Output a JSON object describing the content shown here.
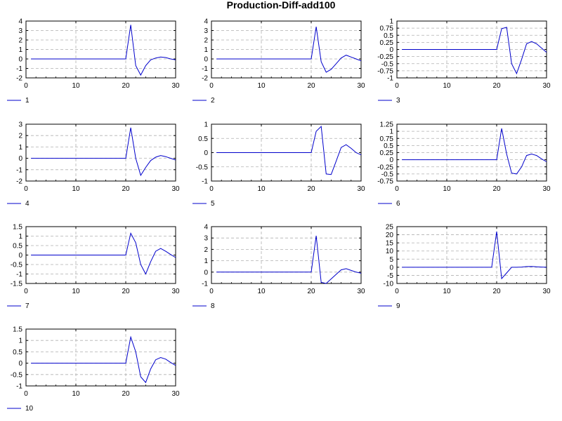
{
  "title": "Production-Diff-add100",
  "chart_data": [
    {
      "type": "line",
      "title": "",
      "xlabel": "",
      "ylabel": "",
      "grid": true,
      "legend_placement": "bottom-left",
      "xlim": [
        0,
        30
      ],
      "ylim": [
        -2,
        4
      ],
      "xticks": [
        "0",
        "10",
        "20",
        "30"
      ],
      "yticks": [
        "-2",
        "-1",
        "0",
        "1",
        "2",
        "3",
        "4"
      ],
      "series": [
        {
          "name": "1",
          "color": "#0000cc",
          "x": [
            1,
            2,
            3,
            4,
            5,
            6,
            7,
            8,
            9,
            10,
            11,
            12,
            13,
            14,
            15,
            16,
            17,
            18,
            19,
            20,
            21,
            22,
            23,
            24,
            25,
            26,
            27,
            28,
            29,
            30
          ],
          "y": [
            0,
            0,
            0,
            0,
            0,
            0,
            0,
            0,
            0,
            0,
            0,
            0,
            0,
            0,
            0,
            0,
            0,
            0,
            0,
            0,
            3.6,
            -0.7,
            -1.7,
            -0.7,
            -0.1,
            0.1,
            0.2,
            0.15,
            0,
            -0.1
          ]
        }
      ]
    },
    {
      "type": "line",
      "title": "",
      "xlabel": "",
      "ylabel": "",
      "grid": true,
      "legend_placement": "bottom-left",
      "xlim": [
        0,
        30
      ],
      "ylim": [
        -2,
        4
      ],
      "xticks": [
        "0",
        "10",
        "20",
        "30"
      ],
      "yticks": [
        "-2",
        "-1",
        "0",
        "1",
        "2",
        "3",
        "4"
      ],
      "series": [
        {
          "name": "2",
          "color": "#0000cc",
          "x": [
            1,
            2,
            3,
            4,
            5,
            6,
            7,
            8,
            9,
            10,
            11,
            12,
            13,
            14,
            15,
            16,
            17,
            18,
            19,
            20,
            21,
            22,
            23,
            24,
            25,
            26,
            27,
            28,
            29,
            30
          ],
          "y": [
            0,
            0,
            0,
            0,
            0,
            0,
            0,
            0,
            0,
            0,
            0,
            0,
            0,
            0,
            0,
            0,
            0,
            0,
            0,
            0,
            3.4,
            -0.3,
            -1.4,
            -1.1,
            -0.5,
            0.1,
            0.4,
            0.2,
            0,
            -0.2
          ]
        }
      ]
    },
    {
      "type": "line",
      "title": "",
      "xlabel": "",
      "ylabel": "",
      "grid": true,
      "legend_placement": "bottom-left",
      "xlim": [
        0,
        30
      ],
      "ylim": [
        -1,
        1
      ],
      "xticks": [
        "0",
        "10",
        "20",
        "30"
      ],
      "yticks": [
        "-1",
        "-0.75",
        "-0.5",
        "-0.25",
        "0",
        "0.25",
        "0.5",
        "0.75",
        "1"
      ],
      "series": [
        {
          "name": "3",
          "color": "#0000cc",
          "x": [
            1,
            2,
            3,
            4,
            5,
            6,
            7,
            8,
            9,
            10,
            11,
            12,
            13,
            14,
            15,
            16,
            17,
            18,
            19,
            20,
            21,
            22,
            23,
            24,
            25,
            26,
            27,
            28,
            29,
            30
          ],
          "y": [
            0,
            0,
            0,
            0,
            0,
            0,
            0,
            0,
            0,
            0,
            0,
            0,
            0,
            0,
            0,
            0,
            0,
            0,
            0,
            0,
            0.73,
            0.78,
            -0.5,
            -0.85,
            -0.35,
            0.2,
            0.28,
            0.2,
            0.05,
            -0.1
          ]
        }
      ]
    },
    {
      "type": "line",
      "title": "",
      "xlabel": "",
      "ylabel": "",
      "grid": true,
      "legend_placement": "bottom-left",
      "xlim": [
        0,
        30
      ],
      "ylim": [
        -2,
        3
      ],
      "xticks": [
        "0",
        "10",
        "20",
        "30"
      ],
      "yticks": [
        "-2",
        "-1",
        "0",
        "1",
        "2",
        "3"
      ],
      "series": [
        {
          "name": "4",
          "color": "#0000cc",
          "x": [
            1,
            2,
            3,
            4,
            5,
            6,
            7,
            8,
            9,
            10,
            11,
            12,
            13,
            14,
            15,
            16,
            17,
            18,
            19,
            20,
            21,
            22,
            23,
            24,
            25,
            26,
            27,
            28,
            29,
            30
          ],
          "y": [
            0,
            0,
            0,
            0,
            0,
            0,
            0,
            0,
            0,
            0,
            0,
            0,
            0,
            0,
            0,
            0,
            0,
            0,
            0,
            0,
            2.7,
            0,
            -1.5,
            -0.8,
            -0.2,
            0.1,
            0.25,
            0.15,
            0,
            -0.15
          ]
        }
      ]
    },
    {
      "type": "line",
      "title": "",
      "xlabel": "",
      "ylabel": "",
      "grid": true,
      "legend_placement": "bottom-left",
      "xlim": [
        0,
        30
      ],
      "ylim": [
        -1,
        1
      ],
      "xticks": [
        "0",
        "10",
        "20",
        "30"
      ],
      "yticks": [
        "-1",
        "-0.5",
        "0",
        "0.5",
        "1"
      ],
      "series": [
        {
          "name": "5",
          "color": "#0000cc",
          "x": [
            1,
            2,
            3,
            4,
            5,
            6,
            7,
            8,
            9,
            10,
            11,
            12,
            13,
            14,
            15,
            16,
            17,
            18,
            19,
            20,
            21,
            22,
            23,
            24,
            25,
            26,
            27,
            28,
            29,
            30
          ],
          "y": [
            0,
            0,
            0,
            0,
            0,
            0,
            0,
            0,
            0,
            0,
            0,
            0,
            0,
            0,
            0,
            0,
            0,
            0,
            0,
            0,
            0.75,
            0.92,
            -0.75,
            -0.77,
            -0.3,
            0.18,
            0.28,
            0.15,
            0,
            -0.08
          ]
        }
      ]
    },
    {
      "type": "line",
      "title": "",
      "xlabel": "",
      "ylabel": "",
      "grid": true,
      "legend_placement": "bottom-left",
      "xlim": [
        0,
        30
      ],
      "ylim": [
        -0.75,
        1.25
      ],
      "xticks": [
        "0",
        "10",
        "20",
        "30"
      ],
      "yticks": [
        "-0.75",
        "-0.5",
        "-0.25",
        "0",
        "0.25",
        "0.5",
        "0.75",
        "1",
        "1.25"
      ],
      "series": [
        {
          "name": "6",
          "color": "#0000cc",
          "x": [
            1,
            2,
            3,
            4,
            5,
            6,
            7,
            8,
            9,
            10,
            11,
            12,
            13,
            14,
            15,
            16,
            17,
            18,
            19,
            20,
            21,
            22,
            23,
            24,
            25,
            26,
            27,
            28,
            29,
            30
          ],
          "y": [
            0,
            0,
            0,
            0,
            0,
            0,
            0,
            0,
            0,
            0,
            0,
            0,
            0,
            0,
            0,
            0,
            0,
            0,
            0,
            0,
            1.1,
            0.2,
            -0.47,
            -0.5,
            -0.25,
            0.15,
            0.2,
            0.15,
            0.03,
            -0.07
          ]
        }
      ]
    },
    {
      "type": "line",
      "title": "",
      "xlabel": "",
      "ylabel": "",
      "grid": true,
      "legend_placement": "bottom-left",
      "xlim": [
        0,
        30
      ],
      "ylim": [
        -1.5,
        1.5
      ],
      "xticks": [
        "0",
        "10",
        "20",
        "30"
      ],
      "yticks": [
        "-1.5",
        "-1",
        "-0.5",
        "0",
        "0.5",
        "1",
        "1.5"
      ],
      "series": [
        {
          "name": "7",
          "color": "#0000cc",
          "x": [
            1,
            2,
            3,
            4,
            5,
            6,
            7,
            8,
            9,
            10,
            11,
            12,
            13,
            14,
            15,
            16,
            17,
            18,
            19,
            20,
            21,
            22,
            23,
            24,
            25,
            26,
            27,
            28,
            29,
            30
          ],
          "y": [
            0,
            0,
            0,
            0,
            0,
            0,
            0,
            0,
            0,
            0,
            0,
            0,
            0,
            0,
            0,
            0,
            0,
            0,
            0,
            0,
            1.15,
            0.65,
            -0.5,
            -1.0,
            -0.35,
            0.2,
            0.35,
            0.2,
            0.03,
            -0.13
          ]
        }
      ]
    },
    {
      "type": "line",
      "title": "",
      "xlabel": "",
      "ylabel": "",
      "grid": true,
      "legend_placement": "bottom-left",
      "xlim": [
        0,
        30
      ],
      "ylim": [
        -1,
        4
      ],
      "xticks": [
        "0",
        "10",
        "20",
        "30"
      ],
      "yticks": [
        "-1",
        "0",
        "1",
        "2",
        "3",
        "4"
      ],
      "series": [
        {
          "name": "8",
          "color": "#0000cc",
          "x": [
            1,
            2,
            3,
            4,
            5,
            6,
            7,
            8,
            9,
            10,
            11,
            12,
            13,
            14,
            15,
            16,
            17,
            18,
            19,
            20,
            21,
            22,
            23,
            24,
            25,
            26,
            27,
            28,
            29,
            30
          ],
          "y": [
            0,
            0,
            0,
            0,
            0,
            0,
            0,
            0,
            0,
            0,
            0,
            0,
            0,
            0,
            0,
            0,
            0,
            0,
            0,
            0,
            3.2,
            -0.9,
            -1.0,
            -0.6,
            -0.2,
            0.2,
            0.3,
            0.15,
            0,
            -0.1
          ]
        }
      ]
    },
    {
      "type": "line",
      "title": "",
      "xlabel": "",
      "ylabel": "",
      "grid": true,
      "legend_placement": "bottom-left",
      "xlim": [
        0,
        30
      ],
      "ylim": [
        -10,
        25
      ],
      "xticks": [
        "0",
        "10",
        "20",
        "30"
      ],
      "yticks": [
        "-10",
        "-5",
        "0",
        "5",
        "10",
        "15",
        "20",
        "25"
      ],
      "series": [
        {
          "name": "9",
          "color": "#0000cc",
          "x": [
            1,
            2,
            3,
            4,
            5,
            6,
            7,
            8,
            9,
            10,
            11,
            12,
            13,
            14,
            15,
            16,
            17,
            18,
            19,
            20,
            21,
            22,
            23,
            24,
            25,
            26,
            27,
            28,
            29,
            30
          ],
          "y": [
            0,
            0,
            0,
            0,
            0,
            0,
            0,
            0,
            0,
            0,
            0,
            0,
            0,
            0,
            0,
            0,
            0,
            0,
            0,
            22,
            -7,
            -3.5,
            0,
            0,
            0.1,
            0.4,
            0.5,
            0.3,
            0.1,
            0
          ]
        }
      ]
    },
    {
      "type": "line",
      "title": "",
      "xlabel": "",
      "ylabel": "",
      "grid": true,
      "legend_placement": "bottom-left",
      "xlim": [
        0,
        30
      ],
      "ylim": [
        -1,
        1.5
      ],
      "xticks": [
        "0",
        "10",
        "20",
        "30"
      ],
      "yticks": [
        "-1",
        "-0.5",
        "0",
        "0.5",
        "1",
        "1.5"
      ],
      "series": [
        {
          "name": "10",
          "color": "#0000cc",
          "x": [
            1,
            2,
            3,
            4,
            5,
            6,
            7,
            8,
            9,
            10,
            11,
            12,
            13,
            14,
            15,
            16,
            17,
            18,
            19,
            20,
            21,
            22,
            23,
            24,
            25,
            26,
            27,
            28,
            29,
            30
          ],
          "y": [
            0,
            0,
            0,
            0,
            0,
            0,
            0,
            0,
            0,
            0,
            0,
            0,
            0,
            0,
            0,
            0,
            0,
            0,
            0,
            0,
            1.15,
            0.5,
            -0.6,
            -0.85,
            -0.25,
            0.15,
            0.25,
            0.18,
            0.03,
            -0.1
          ]
        }
      ]
    }
  ]
}
